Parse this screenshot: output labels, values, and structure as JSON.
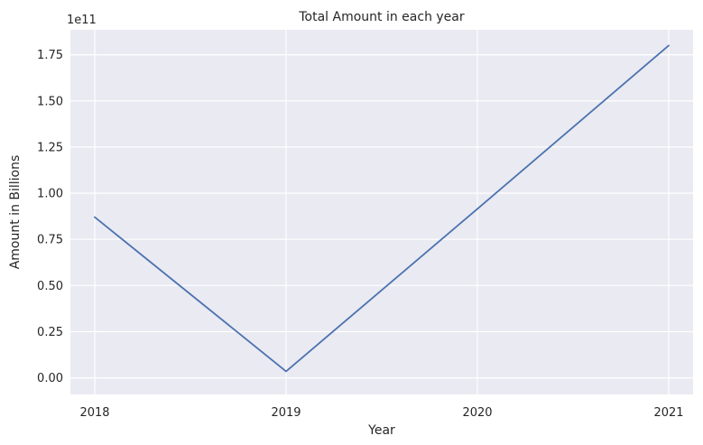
{
  "chart_data": {
    "type": "line",
    "title": "Total Amount in each year",
    "xlabel": "Year",
    "ylabel": "Amount in Billions",
    "y_offset_label": "1e11",
    "x": [
      "2018",
      "2019",
      "2020",
      "2021"
    ],
    "series": [
      {
        "values": [
          87000000000,
          3500000000,
          91500000000,
          180000000000
        ],
        "color": "#4c72b0"
      }
    ],
    "y_ticks": [
      0,
      0.25,
      0.5,
      0.75,
      1.0,
      1.25,
      1.5,
      1.75
    ],
    "y_tick_labels": [
      "0.00",
      "0.25",
      "0.50",
      "0.75",
      "1.00",
      "1.25",
      "1.50",
      "1.75"
    ],
    "ylim": [
      -0.09,
      1.885
    ],
    "y_scale": 100000000000,
    "grid": true,
    "style": {
      "background": "#eaeaf2",
      "grid_color": "#ffffff"
    }
  }
}
